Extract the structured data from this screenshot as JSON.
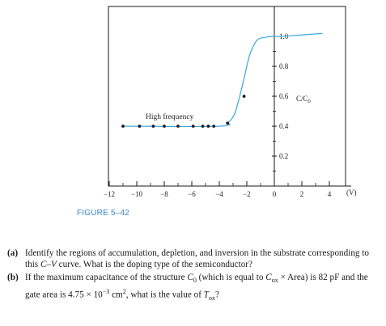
{
  "figure": {
    "label": "FIGURE 5–42",
    "curve_color": "#39a8e0",
    "marker_color": "#1a1a1a",
    "annotation": "High frequency",
    "y_axis_title": "C/C",
    "y_axis_title_subscript": "0",
    "x_unit": "(V)"
  },
  "chart_data": {
    "type": "line",
    "title": "",
    "xlabel": "(V)",
    "ylabel": "C/C0",
    "xlim": [
      -12,
      4.5
    ],
    "ylim": [
      0,
      1.05
    ],
    "x_ticks": [
      -12,
      -10,
      -8,
      -6,
      -4,
      -2,
      0,
      2,
      4
    ],
    "x_tick_labels": [
      "−12",
      "−10",
      "−8",
      "−6",
      "−4",
      "−2",
      "0",
      "2",
      "4"
    ],
    "y_ticks": [
      0.2,
      0.4,
      0.6,
      0.8,
      1.0
    ],
    "y_tick_labels": [
      "0.2",
      "0.4",
      "0.6",
      "0.8",
      "1.0"
    ],
    "series": [
      {
        "name": "High frequency",
        "curve": {
          "x": [
            -11.0,
            -4.0,
            -3.3,
            -2.9,
            -2.6,
            -2.3,
            -2.1,
            -1.9,
            -1.7,
            -1.5,
            -1.3,
            -1.1,
            -0.9,
            -0.6,
            -0.2,
            0.5,
            2.0,
            3.5
          ],
          "y": [
            0.4,
            0.4,
            0.43,
            0.48,
            0.57,
            0.68,
            0.76,
            0.84,
            0.9,
            0.94,
            0.97,
            0.985,
            0.99,
            0.995,
            1.0,
            1.0,
            1.01,
            1.02
          ]
        },
        "points": {
          "x": [
            -11.0,
            -9.8,
            -8.8,
            -8.0,
            -7.0,
            -5.9,
            -5.2,
            -4.8,
            -4.4,
            -3.4,
            -2.2
          ],
          "y": [
            0.4,
            0.4,
            0.4,
            0.4,
            0.4,
            0.4,
            0.4,
            0.4,
            0.4,
            0.42,
            0.6
          ]
        }
      }
    ]
  },
  "questions": [
    {
      "tag": "(a)",
      "parts": [
        {
          "t": "Identify the regions of accumulation, depletion, and inversion in the substrate corresponding to this "
        },
        {
          "t": "C–V",
          "s": "i"
        },
        {
          "t": " curve. What is the doping type of the semiconductor?"
        }
      ]
    },
    {
      "tag": "(b)",
      "parts": [
        {
          "t": "If the maximum capacitance of the structure "
        },
        {
          "t": "C",
          "s": "i"
        },
        {
          "t": "0",
          "s": "sub"
        },
        {
          "t": " (which is equal to "
        },
        {
          "t": "C",
          "s": "i"
        },
        {
          "t": "ox",
          "s": "sub"
        },
        {
          "t": " × Area) is 82 pF and the gate area is 4.75 × 10"
        },
        {
          "t": "−3",
          "s": "sup"
        },
        {
          "t": " cm"
        },
        {
          "t": "2",
          "s": "sup"
        },
        {
          "t": ", what is the value of "
        },
        {
          "t": "T",
          "s": "i"
        },
        {
          "t": "ox",
          "s": "sub"
        },
        {
          "t": "?"
        }
      ]
    }
  ]
}
